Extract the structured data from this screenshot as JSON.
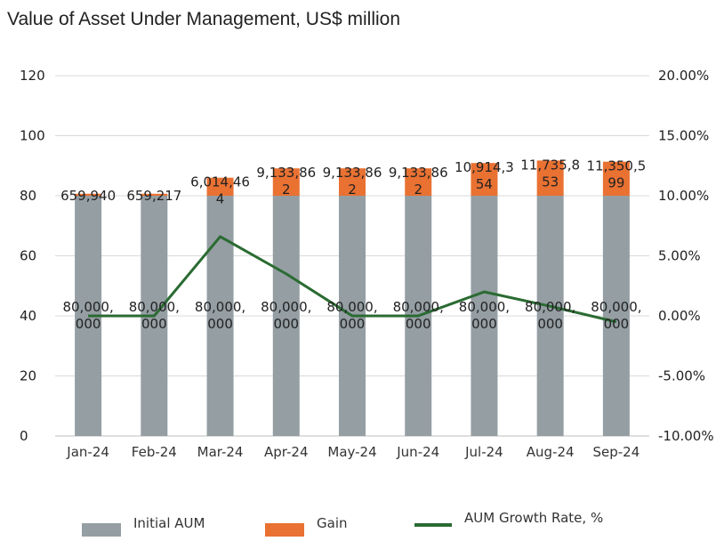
{
  "chart_data": {
    "type": "bar",
    "title": "Value of Asset Under Management, US$ million",
    "categories": [
      "Jan-24",
      "Feb-24",
      "Mar-24",
      "Apr-24",
      "May-24",
      "Jun-24",
      "Jul-24",
      "Aug-24",
      "Sep-24"
    ],
    "y_left": {
      "min": 0,
      "max": 120,
      "ticks": [
        0,
        20,
        40,
        60,
        80,
        100,
        120
      ]
    },
    "y_right": {
      "min": -0.1,
      "max": 0.2,
      "tick_labels": [
        "-10.00%",
        "-5.00%",
        "0.00%",
        "5.00%",
        "10.00%",
        "15.00%",
        "20.00%"
      ]
    },
    "grid": true,
    "legend_position": "bottom",
    "series": [
      {
        "name": "Initial AUM",
        "kind": "bar",
        "axis": "left",
        "color": "#949ea3",
        "values": [
          80,
          80,
          80,
          80,
          80,
          80,
          80,
          80,
          80
        ],
        "labels": [
          "80,000,\n000",
          "80,000,\n000",
          "80,000,\n000",
          "80,000,\n000",
          "80,000,\n000",
          "80,000,\n000",
          "80,000,\n000",
          "80,000,\n000",
          "80,000,\n000"
        ]
      },
      {
        "name": "Gain",
        "kind": "bar",
        "axis": "left",
        "color": "#e97132",
        "values": [
          0.66,
          0.66,
          6.01,
          9.13,
          9.13,
          9.13,
          10.91,
          11.74,
          11.35
        ],
        "labels": [
          "659,940",
          "659,217",
          "6,014,46\n4",
          "9,133,86\n2",
          "9,133,86\n2",
          "9,133,86\n2",
          "10,914,3\n54",
          "11,735,8\n53",
          "11,350,5\n99"
        ]
      },
      {
        "name": "AUM Growth Rate, %",
        "kind": "line",
        "axis": "right",
        "color": "#2a6b32",
        "values": [
          0.0,
          0.0,
          0.066,
          0.035,
          0.0,
          0.0,
          0.02,
          0.008,
          -0.005
        ]
      }
    ]
  }
}
